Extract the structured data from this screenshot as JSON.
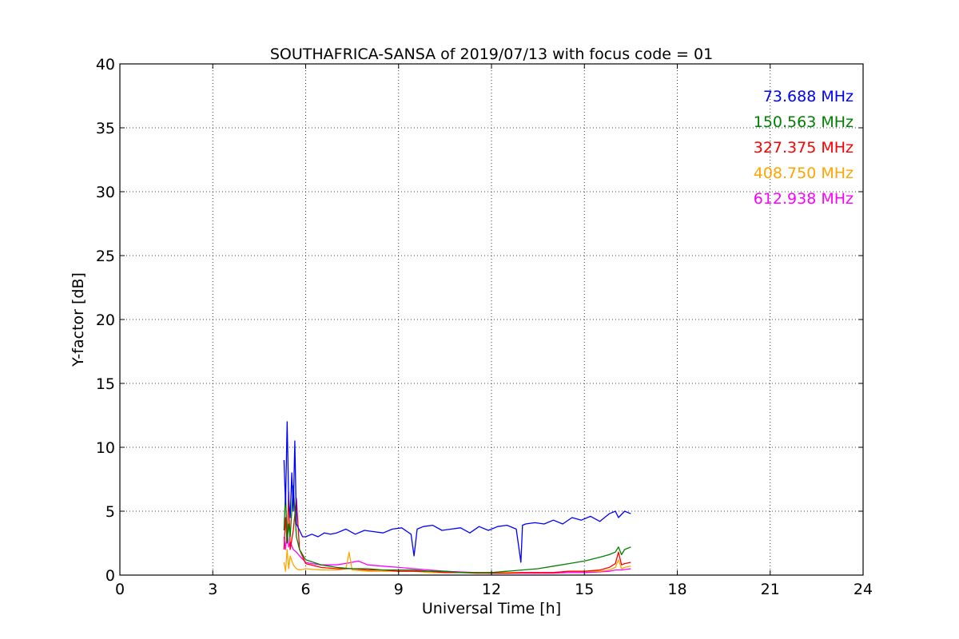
{
  "chart_data": {
    "type": "line",
    "title": "SOUTHAFRICA-SANSA of 2019/07/13 with focus code = 01",
    "xlabel": "Universal Time [h]",
    "ylabel": "Y-factor [dB]",
    "xlim": [
      0,
      24
    ],
    "ylim": [
      0,
      40
    ],
    "xticks": [
      0,
      3,
      6,
      9,
      12,
      15,
      18,
      21,
      24
    ],
    "xtick_labels": [
      "0",
      "3",
      "6",
      "9",
      "12",
      "15",
      "18",
      "21",
      "24"
    ],
    "yticks": [
      0,
      5,
      10,
      15,
      20,
      25,
      30,
      35,
      40
    ],
    "ytick_labels": [
      "0",
      "5",
      "10",
      "15",
      "20",
      "25",
      "30",
      "35",
      "40"
    ],
    "grid": true,
    "legend_position": "top-right",
    "series": [
      {
        "name": "73.688 MHz",
        "color": "#0000ff",
        "x": [
          5.3,
          5.35,
          5.4,
          5.45,
          5.5,
          5.55,
          5.6,
          5.65,
          5.7,
          5.8,
          5.9,
          6.0,
          6.2,
          6.4,
          6.6,
          6.8,
          7.0,
          7.3,
          7.6,
          7.9,
          8.2,
          8.5,
          8.8,
          9.1,
          9.4,
          9.5,
          9.6,
          9.8,
          10.1,
          10.4,
          10.7,
          11.0,
          11.3,
          11.6,
          11.9,
          12.2,
          12.5,
          12.8,
          12.95,
          13.0,
          13.1,
          13.4,
          13.7,
          14.0,
          14.3,
          14.6,
          14.9,
          15.2,
          15.5,
          15.8,
          16.0,
          16.1,
          16.3,
          16.5
        ],
        "y": [
          9.0,
          5.5,
          12.0,
          6.0,
          4.5,
          8.0,
          5.0,
          10.5,
          4.0,
          3.5,
          3.0,
          3.0,
          3.2,
          3.0,
          3.3,
          3.2,
          3.3,
          3.6,
          3.2,
          3.5,
          3.4,
          3.3,
          3.6,
          3.7,
          3.2,
          1.5,
          3.6,
          3.8,
          3.9,
          3.5,
          3.6,
          3.7,
          3.3,
          3.8,
          3.5,
          3.8,
          3.9,
          3.6,
          1.0,
          3.9,
          4.0,
          4.1,
          4.0,
          4.3,
          4.0,
          4.5,
          4.3,
          4.6,
          4.2,
          4.8,
          5.0,
          4.5,
          5.0,
          4.8
        ]
      },
      {
        "name": "150.563 MHz",
        "color": "#008000",
        "x": [
          5.3,
          5.35,
          5.4,
          5.45,
          5.5,
          5.6,
          5.7,
          5.8,
          6.0,
          6.5,
          7.0,
          7.5,
          8.0,
          8.5,
          9.0,
          9.5,
          10.0,
          10.5,
          11.0,
          11.5,
          12.0,
          12.5,
          13.0,
          13.5,
          14.0,
          14.5,
          15.0,
          15.5,
          15.8,
          16.0,
          16.1,
          16.2,
          16.3,
          16.5
        ],
        "y": [
          3.5,
          6.5,
          2.5,
          4.0,
          3.0,
          7.0,
          3.0,
          2.0,
          1.2,
          0.8,
          0.6,
          0.5,
          0.5,
          0.4,
          0.4,
          0.4,
          0.3,
          0.3,
          0.2,
          0.2,
          0.2,
          0.3,
          0.4,
          0.5,
          0.7,
          0.9,
          1.1,
          1.4,
          1.6,
          1.8,
          2.2,
          1.6,
          2.0,
          2.2
        ]
      },
      {
        "name": "327.375 MHz",
        "color": "#ff0000",
        "x": [
          5.3,
          5.35,
          5.4,
          5.45,
          5.5,
          5.6,
          5.7,
          5.8,
          6.0,
          6.5,
          7.0,
          7.5,
          8.0,
          8.5,
          9.0,
          9.5,
          10.0,
          10.5,
          11.0,
          11.5,
          12.0,
          12.5,
          13.0,
          13.5,
          14.0,
          14.5,
          15.0,
          15.5,
          15.8,
          16.0,
          16.1,
          16.2,
          16.3,
          16.5
        ],
        "y": [
          2.0,
          4.5,
          2.5,
          6.5,
          2.0,
          3.5,
          6.0,
          2.0,
          0.9,
          0.6,
          0.5,
          0.5,
          0.4,
          0.4,
          0.3,
          0.3,
          0.3,
          0.2,
          0.2,
          0.15,
          0.15,
          0.15,
          0.2,
          0.2,
          0.2,
          0.3,
          0.3,
          0.4,
          0.6,
          0.9,
          1.8,
          0.8,
          0.9,
          1.0
        ]
      },
      {
        "name": "408.750 MHz",
        "color": "#ffa500",
        "x": [
          5.3,
          5.35,
          5.4,
          5.45,
          5.5,
          5.6,
          5.7,
          5.8,
          6.0,
          6.5,
          7.0,
          7.3,
          7.4,
          7.5,
          8.0,
          8.5,
          9.0,
          9.5,
          10.0,
          10.5,
          11.0,
          11.5,
          12.0,
          12.5,
          13.0,
          13.5,
          14.0,
          14.5,
          15.0,
          15.5,
          15.8,
          16.0,
          16.1,
          16.2,
          16.3,
          16.5
        ],
        "y": [
          1.0,
          0.3,
          2.0,
          0.5,
          1.5,
          0.8,
          0.5,
          0.4,
          0.5,
          0.4,
          0.4,
          0.5,
          1.8,
          0.4,
          0.3,
          0.3,
          0.3,
          0.3,
          0.2,
          0.2,
          0.2,
          0.2,
          0.2,
          0.2,
          0.2,
          0.2,
          0.2,
          0.3,
          0.3,
          0.3,
          0.4,
          0.6,
          1.2,
          0.5,
          0.6,
          0.7
        ]
      },
      {
        "name": "612.938 MHz",
        "color": "#ff00ff",
        "x": [
          5.3,
          5.35,
          5.4,
          5.45,
          5.5,
          5.6,
          5.7,
          5.8,
          6.0,
          6.2,
          6.5,
          7.0,
          7.5,
          7.7,
          8.0,
          8.5,
          9.0,
          9.5,
          10.0,
          10.5,
          11.0,
          11.5,
          12.0,
          12.5,
          13.0,
          13.5,
          14.0,
          14.5,
          15.0,
          15.5,
          15.8,
          16.0,
          16.2,
          16.5
        ],
        "y": [
          3.0,
          2.0,
          3.5,
          2.2,
          2.6,
          2.0,
          1.8,
          1.5,
          1.0,
          0.9,
          0.8,
          0.8,
          1.0,
          1.1,
          0.8,
          0.7,
          0.6,
          0.5,
          0.4,
          0.3,
          0.25,
          0.2,
          0.15,
          0.15,
          0.15,
          0.15,
          0.15,
          0.2,
          0.2,
          0.25,
          0.3,
          0.4,
          0.4,
          0.5
        ]
      }
    ]
  }
}
